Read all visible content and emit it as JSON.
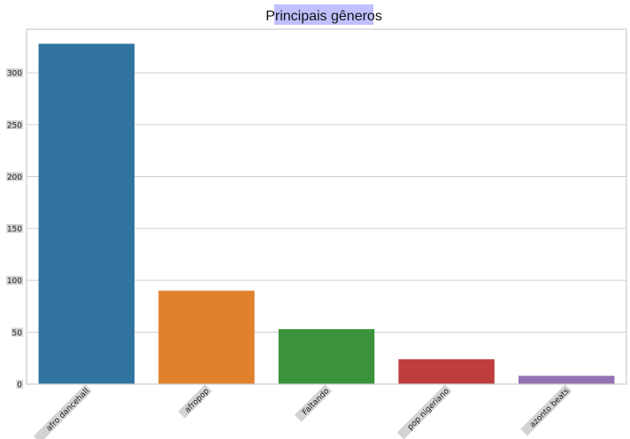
{
  "chart_data": {
    "type": "bar",
    "title": "Principais gêneros",
    "xlabel": "",
    "ylabel": "",
    "categories": [
      "afro dancehall",
      "afropop",
      "Faltando",
      "pop nigeriano",
      "azonto beats"
    ],
    "values": [
      328,
      90,
      53,
      24,
      8
    ],
    "colors": [
      "#3274a1",
      "#e1812c",
      "#3a923a",
      "#c03d3e",
      "#9372b2"
    ],
    "ylim": [
      0,
      342
    ],
    "yticks": [
      0,
      50,
      100,
      150,
      200,
      250,
      300
    ],
    "grid": "horizontal",
    "title_background": "#c0c0ff",
    "tick_label_background": "#d3d3d3"
  }
}
